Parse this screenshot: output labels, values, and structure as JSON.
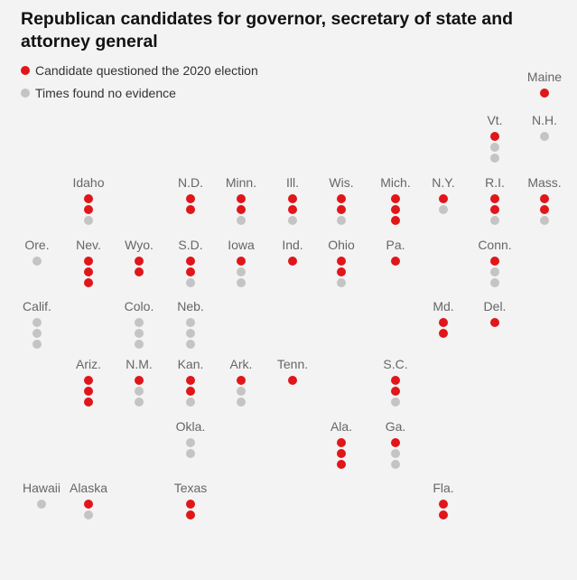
{
  "title": "Republican candidates for governor, secretary of state and attorney general",
  "colors": {
    "questioned": "#e0161a",
    "no_evidence": "#c4c4c4"
  },
  "legend": {
    "questioned": "Candidate questioned the 2020 election",
    "no_evidence": "Times found no evidence"
  },
  "states": [
    {
      "name": "Maine",
      "dots": "r"
    },
    {
      "name": "Vt.",
      "dots": "rgg"
    },
    {
      "name": "N.H.",
      "dots": "g"
    },
    {
      "name": "Idaho",
      "dots": "rrg"
    },
    {
      "name": "N.D.",
      "dots": "rr"
    },
    {
      "name": "Minn.",
      "dots": "rrg"
    },
    {
      "name": "Ill.",
      "dots": "rrg"
    },
    {
      "name": "Wis.",
      "dots": "rrg"
    },
    {
      "name": "Mich.",
      "dots": "rrr"
    },
    {
      "name": "N.Y.",
      "dots": "rg"
    },
    {
      "name": "R.I.",
      "dots": "rrg"
    },
    {
      "name": "Mass.",
      "dots": "rrg"
    },
    {
      "name": "Ore.",
      "dots": "g"
    },
    {
      "name": "Nev.",
      "dots": "rrr"
    },
    {
      "name": "Wyo.",
      "dots": "rr"
    },
    {
      "name": "S.D.",
      "dots": "rrg"
    },
    {
      "name": "Iowa",
      "dots": "rgg"
    },
    {
      "name": "Ind.",
      "dots": "r"
    },
    {
      "name": "Ohio",
      "dots": "rrg"
    },
    {
      "name": "Pa.",
      "dots": "r"
    },
    {
      "name": "Conn.",
      "dots": "rgg"
    },
    {
      "name": "Calif.",
      "dots": "ggg"
    },
    {
      "name": "Colo.",
      "dots": "ggg"
    },
    {
      "name": "Neb.",
      "dots": "ggg"
    },
    {
      "name": "Md.",
      "dots": "rr"
    },
    {
      "name": "Del.",
      "dots": "r"
    },
    {
      "name": "Ariz.",
      "dots": "rrr"
    },
    {
      "name": "N.M.",
      "dots": "rgg"
    },
    {
      "name": "Kan.",
      "dots": "rrg"
    },
    {
      "name": "Ark.",
      "dots": "rgg"
    },
    {
      "name": "Tenn.",
      "dots": "r"
    },
    {
      "name": "S.C.",
      "dots": "rrg"
    },
    {
      "name": "Okla.",
      "dots": "gg"
    },
    {
      "name": "Ala.",
      "dots": "rrr"
    },
    {
      "name": "Ga.",
      "dots": "rgg"
    },
    {
      "name": "Hawaii",
      "dots": "g"
    },
    {
      "name": "Alaska",
      "dots": "rg"
    },
    {
      "name": "Texas",
      "dots": "rr"
    },
    {
      "name": "Fla.",
      "dots": "rr"
    }
  ]
}
